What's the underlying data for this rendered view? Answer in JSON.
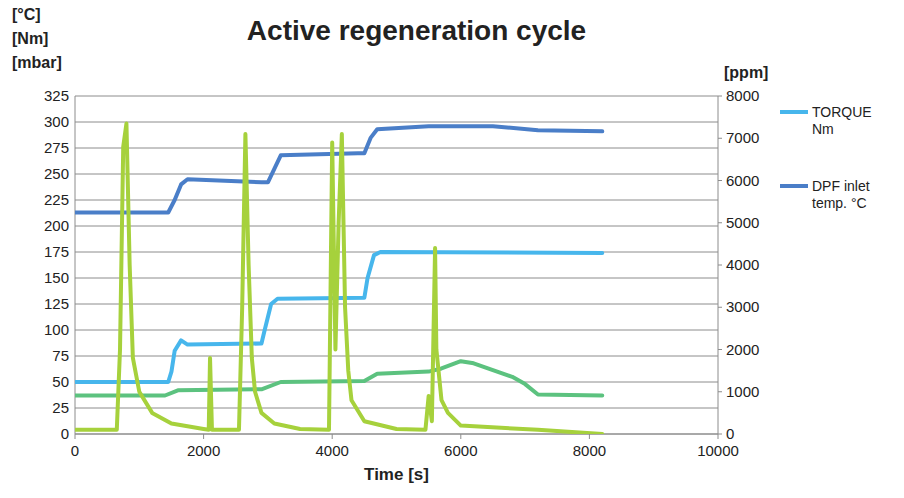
{
  "chart_data": {
    "type": "line",
    "title": "Active regeneration cycle",
    "y_labels": [
      "[°C]",
      "[Nm]",
      "[mbar]"
    ],
    "y2_label": "[ppm]",
    "x_label": "Time [s]",
    "xlim": [
      0,
      10000
    ],
    "xticks": [
      0,
      2000,
      4000,
      6000,
      8000,
      10000
    ],
    "ylim": [
      0,
      325
    ],
    "yticks": [
      0,
      25,
      50,
      75,
      100,
      125,
      150,
      175,
      200,
      225,
      250,
      275,
      300,
      325
    ],
    "y2lim": [
      0,
      8000
    ],
    "y2ticks": [
      0,
      1000,
      2000,
      3000,
      4000,
      5000,
      6000,
      7000,
      8000
    ],
    "grid": true,
    "legend": "right",
    "series": [
      {
        "name": "TORQUE Nm",
        "color": "#47b6ec",
        "x": [
          0,
          1450,
          1500,
          1550,
          1650,
          1750,
          2900,
          2950,
          3050,
          3150,
          4500,
          4550,
          4650,
          4750,
          8200
        ],
        "values": [
          50,
          50,
          60,
          80,
          90,
          86,
          87,
          100,
          125,
          130,
          131,
          150,
          172,
          175,
          174
        ]
      },
      {
        "name": "DPF inlet temp. °C",
        "color": "#4a7ec8",
        "x": [
          0,
          1450,
          1550,
          1650,
          1750,
          2900,
          3000,
          3100,
          3200,
          4400,
          4500,
          4600,
          4700,
          5500,
          6500,
          7200,
          8200
        ],
        "values": [
          213,
          213,
          225,
          240,
          245,
          242,
          242,
          255,
          268,
          270,
          270,
          285,
          293,
          296,
          296,
          292,
          291
        ]
      },
      {
        "color": "#5cc27f",
        "x": [
          0,
          1400,
          1600,
          2900,
          3200,
          4500,
          4700,
          5500,
          5700,
          6000,
          6200,
          6800,
          7000,
          7200,
          8200
        ],
        "values": [
          37,
          37,
          42,
          43,
          50,
          51,
          58,
          60,
          63,
          70,
          68,
          55,
          48,
          38,
          37
        ]
      },
      {
        "color": "#a6d13c",
        "axis": "y2",
        "x": [
          0,
          650,
          700,
          750,
          800,
          850,
          900,
          1000,
          1200,
          1500,
          2000,
          2080,
          2100,
          2130,
          2200,
          2550,
          2600,
          2650,
          2700,
          2750,
          2800,
          2900,
          3100,
          3500,
          3950,
          4000,
          4050,
          4100,
          4150,
          4200,
          4250,
          4300,
          4500,
          5000,
          5450,
          5500,
          5550,
          5600,
          5620,
          5700,
          5800,
          6000,
          7200,
          8200
        ],
        "values": [
          100,
          100,
          2000,
          6800,
          7350,
          4000,
          1800,
          1000,
          500,
          250,
          120,
          100,
          1800,
          100,
          100,
          100,
          3000,
          7100,
          4000,
          1800,
          1000,
          500,
          250,
          120,
          100,
          6900,
          2000,
          5000,
          7100,
          3000,
          1500,
          800,
          300,
          120,
          100,
          900,
          300,
          4400,
          2000,
          800,
          500,
          200,
          100,
          0
        ]
      }
    ]
  }
}
